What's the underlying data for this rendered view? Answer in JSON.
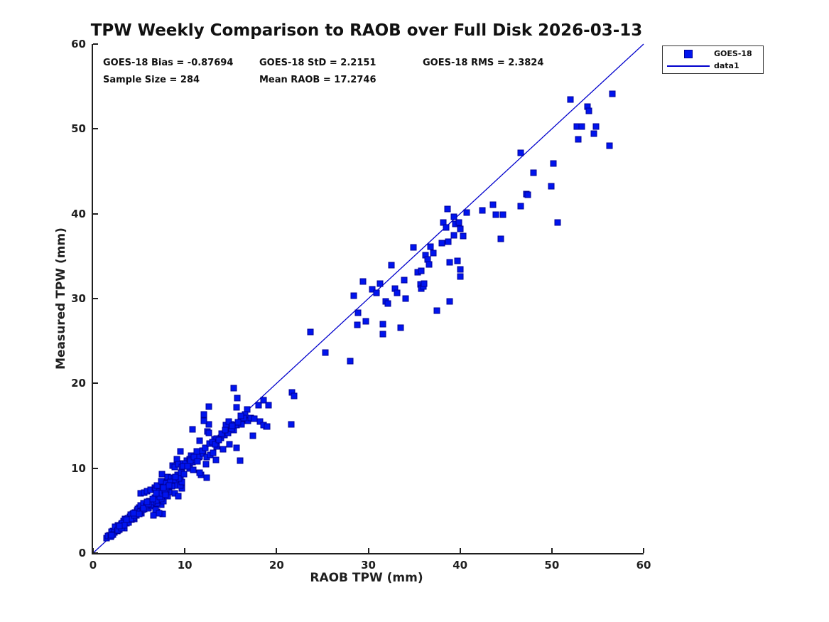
{
  "title": "TPW Weekly Comparison to RAOB over Full Disk 2026-03-13",
  "stats": {
    "bias": "GOES-18 Bias = -0.87694",
    "std": "GOES-18 StD = 2.2151",
    "rms": "GOES-18 RMS = 2.3824",
    "sample_size": "Sample Size = 284",
    "mean_raob": "Mean RAOB = 17.2746"
  },
  "legend": {
    "marker_label": "GOES-18",
    "line_label": "data1"
  },
  "colors": {
    "marker_fill": "#0014ee",
    "marker_edge": "#000099",
    "line": "#0000cc",
    "axis": "#1f1f1f"
  },
  "chart_data": {
    "type": "scatter",
    "title": "TPW Weekly Comparison to RAOB over Full Disk 2026-03-13",
    "xlabel": "RAOB TPW (mm)",
    "ylabel": "Measured TPW (mm)",
    "xlim": [
      0,
      60
    ],
    "ylim": [
      0,
      60
    ],
    "xticks": [
      0,
      10,
      20,
      30,
      40,
      50,
      60
    ],
    "yticks": [
      0,
      10,
      20,
      30,
      40,
      50,
      60
    ],
    "grid": false,
    "legend_position": "outside-top-right",
    "annotations": [
      "GOES-18 Bias = -0.87694",
      "GOES-18 StD = 2.2151",
      "GOES-18 RMS = 2.3824",
      "Sample Size = 284",
      "Mean RAOB = 17.2746"
    ],
    "series": [
      {
        "name": "GOES-18",
        "type": "scatter",
        "marker": "square",
        "points": [
          [
            1.5,
            1.8
          ],
          [
            1.8,
            2.1
          ],
          [
            2.1,
            2.3
          ],
          [
            2.2,
            2.6
          ],
          [
            2.5,
            2.9
          ],
          [
            2.7,
            3.3
          ],
          [
            2.9,
            2.8
          ],
          [
            3.1,
            3.4
          ],
          [
            3.3,
            3.8
          ],
          [
            3.4,
            2.9
          ],
          [
            3.5,
            4.0
          ],
          [
            3.7,
            3.8
          ],
          [
            4.0,
            4.3
          ],
          [
            4.3,
            4.6
          ],
          [
            4.5,
            4.0
          ],
          [
            4.8,
            5.0
          ],
          [
            5.0,
            5.4
          ],
          [
            5.3,
            4.7
          ],
          [
            5.6,
            5.2
          ],
          [
            5.7,
            5.8
          ],
          [
            6.0,
            5.3
          ],
          [
            6.2,
            5.9
          ],
          [
            6.4,
            5.5
          ],
          [
            6.6,
            6.3
          ],
          [
            6.8,
            5.9
          ],
          [
            7.0,
            4.9
          ],
          [
            7.1,
            6.3
          ],
          [
            7.4,
            5.7
          ],
          [
            7.6,
            4.6
          ],
          [
            7.7,
            6.1
          ],
          [
            6.6,
            4.4
          ],
          [
            6.8,
            5.1
          ],
          [
            7.2,
            4.7
          ],
          [
            7.0,
            5.9
          ],
          [
            7.4,
            6.4
          ],
          [
            8.1,
            6.7
          ],
          [
            8.3,
            7.2
          ],
          [
            8.9,
            7.0
          ],
          [
            9.3,
            6.7
          ],
          [
            9.7,
            7.6
          ],
          [
            5.2,
            7.0
          ],
          [
            5.6,
            7.1
          ],
          [
            5.9,
            7.3
          ],
          [
            6.3,
            7.5
          ],
          [
            6.7,
            7.7
          ],
          [
            6.8,
            7.5
          ],
          [
            7.0,
            8.0
          ],
          [
            7.2,
            7.2
          ],
          [
            7.4,
            8.5
          ],
          [
            7.5,
            9.3
          ],
          [
            7.6,
            7.5
          ],
          [
            8.0,
            7.4
          ],
          [
            8.0,
            8.2
          ],
          [
            8.1,
            9.0
          ],
          [
            8.5,
            8.9
          ],
          [
            8.5,
            8.2
          ],
          [
            8.7,
            8.2
          ],
          [
            8.7,
            10.3
          ],
          [
            8.8,
            8.8
          ],
          [
            8.9,
            10.1
          ],
          [
            9.1,
            8.0
          ],
          [
            9.1,
            11.1
          ],
          [
            9.3,
            10.5
          ],
          [
            9.5,
            8.0
          ],
          [
            9.5,
            9.0
          ],
          [
            9.5,
            12.0
          ],
          [
            9.7,
            8.4
          ],
          [
            9.7,
            9.9
          ],
          [
            9.8,
            10.6
          ],
          [
            10.2,
            10.9
          ],
          [
            10.5,
            10.0
          ],
          [
            10.7,
            11.5
          ],
          [
            10.8,
            14.6
          ],
          [
            11.5,
            11.3
          ],
          [
            11.8,
            9.2
          ],
          [
            12.4,
            8.9
          ],
          [
            11.6,
            9.5
          ],
          [
            9.7,
            10.1
          ],
          [
            10.1,
            10.6
          ],
          [
            10.5,
            11.1
          ],
          [
            10.8,
            10.7
          ],
          [
            11.2,
            11.0
          ],
          [
            11.6,
            11.4
          ],
          [
            12.0,
            11.7
          ],
          [
            12.4,
            11.3
          ],
          [
            12.8,
            11.6
          ],
          [
            13.1,
            11.8
          ],
          [
            13.5,
            12.6
          ],
          [
            14.2,
            12.2
          ],
          [
            14.9,
            12.8
          ],
          [
            15.6,
            12.4
          ],
          [
            16.0,
            10.9
          ],
          [
            11.6,
            13.2
          ],
          [
            13.2,
            13.4
          ],
          [
            13.5,
            13.5
          ],
          [
            13.9,
            13.6
          ],
          [
            14.3,
            13.9
          ],
          [
            14.7,
            14.2
          ],
          [
            15.0,
            15.2
          ],
          [
            15.3,
            14.5
          ],
          [
            14.5,
            15.1
          ],
          [
            12.5,
            14.3
          ],
          [
            12.6,
            14.2
          ],
          [
            12.6,
            15.2
          ],
          [
            12.1,
            15.6
          ],
          [
            12.1,
            16.3
          ],
          [
            12.6,
            17.3
          ],
          [
            14.8,
            15.5
          ],
          [
            15.1,
            14.7
          ],
          [
            15.6,
            15.1
          ],
          [
            16.2,
            15.2
          ],
          [
            16.9,
            15.6
          ],
          [
            17.4,
            13.8
          ],
          [
            18.9,
            14.9
          ],
          [
            17.2,
            15.9
          ],
          [
            17.6,
            15.8
          ],
          [
            18.2,
            15.5
          ],
          [
            18.6,
            15.1
          ],
          [
            19.0,
            14.9
          ],
          [
            15.3,
            19.4
          ],
          [
            15.7,
            18.3
          ],
          [
            15.6,
            17.2
          ],
          [
            16.8,
            16.9
          ],
          [
            16.6,
            16.3
          ],
          [
            18.0,
            17.4
          ],
          [
            18.6,
            18.0
          ],
          [
            19.1,
            17.4
          ],
          [
            21.6,
            15.2
          ],
          [
            21.7,
            18.9
          ],
          [
            21.9,
            18.5
          ],
          [
            23.7,
            26.1
          ],
          [
            25.3,
            23.6
          ],
          [
            28.0,
            22.6
          ],
          [
            28.4,
            30.3
          ],
          [
            28.8,
            26.9
          ],
          [
            28.9,
            28.3
          ],
          [
            29.4,
            32.0
          ],
          [
            29.7,
            27.3
          ],
          [
            30.4,
            31.1
          ],
          [
            30.9,
            30.7
          ],
          [
            31.3,
            31.8
          ],
          [
            31.6,
            27.0
          ],
          [
            31.6,
            25.8
          ],
          [
            31.9,
            29.7
          ],
          [
            32.1,
            29.4
          ],
          [
            32.9,
            31.2
          ],
          [
            33.1,
            30.7
          ],
          [
            33.5,
            26.6
          ],
          [
            33.9,
            32.2
          ],
          [
            34.1,
            30.0
          ],
          [
            35.4,
            33.1
          ],
          [
            35.7,
            31.7
          ],
          [
            35.8,
            31.2
          ],
          [
            36.0,
            31.4
          ],
          [
            36.1,
            31.8
          ],
          [
            37.5,
            28.6
          ],
          [
            38.9,
            29.7
          ],
          [
            32.5,
            33.9
          ],
          [
            34.9,
            36.0
          ],
          [
            35.8,
            33.3
          ],
          [
            36.2,
            35.1
          ],
          [
            36.5,
            34.6
          ],
          [
            36.6,
            34.0
          ],
          [
            36.8,
            36.1
          ],
          [
            37.1,
            35.4
          ],
          [
            38.0,
            36.5
          ],
          [
            38.2,
            39.0
          ],
          [
            38.5,
            38.4
          ],
          [
            38.6,
            40.6
          ],
          [
            38.7,
            36.7
          ],
          [
            39.3,
            37.5
          ],
          [
            39.3,
            39.6
          ],
          [
            39.5,
            38.8
          ],
          [
            39.9,
            39.0
          ],
          [
            40.0,
            38.2
          ],
          [
            40.3,
            37.4
          ],
          [
            38.9,
            34.3
          ],
          [
            39.7,
            34.4
          ],
          [
            40.0,
            33.4
          ],
          [
            40.0,
            32.6
          ],
          [
            40.7,
            40.1
          ],
          [
            42.4,
            40.4
          ],
          [
            43.6,
            41.1
          ],
          [
            43.9,
            39.9
          ],
          [
            44.4,
            37.0
          ],
          [
            44.7,
            39.9
          ],
          [
            46.6,
            40.9
          ],
          [
            46.6,
            47.2
          ],
          [
            47.2,
            42.3
          ],
          [
            47.4,
            42.2
          ],
          [
            48.0,
            44.8
          ],
          [
            49.9,
            43.2
          ],
          [
            50.2,
            45.9
          ],
          [
            50.6,
            39.0
          ],
          [
            52.0,
            53.5
          ],
          [
            52.7,
            50.3
          ],
          [
            52.9,
            48.8
          ],
          [
            53.3,
            50.3
          ],
          [
            53.9,
            52.6
          ],
          [
            54.0,
            52.1
          ],
          [
            54.6,
            49.4
          ],
          [
            54.8,
            50.3
          ],
          [
            56.3,
            48.0
          ],
          [
            56.6,
            54.1
          ],
          [
            1.6,
            2.0
          ],
          [
            1.9,
            1.9
          ],
          [
            2.0,
            2.5
          ],
          [
            2.3,
            2.4
          ],
          [
            2.4,
            3.1
          ],
          [
            2.6,
            2.6
          ],
          [
            2.8,
            3.0
          ],
          [
            3.0,
            3.1
          ],
          [
            3.2,
            3.5
          ],
          [
            3.6,
            3.5
          ],
          [
            3.8,
            4.1
          ],
          [
            3.9,
            3.6
          ],
          [
            4.1,
            4.5
          ],
          [
            4.2,
            3.9
          ],
          [
            4.4,
            4.2
          ],
          [
            4.6,
            4.8
          ],
          [
            4.7,
            4.4
          ],
          [
            4.9,
            5.2
          ],
          [
            5.1,
            4.9
          ],
          [
            5.2,
            5.6
          ],
          [
            5.4,
            5.1
          ],
          [
            5.5,
            5.9
          ],
          [
            5.8,
            5.5
          ],
          [
            6.1,
            6.1
          ],
          [
            6.3,
            5.7
          ],
          [
            6.5,
            6.0
          ],
          [
            6.7,
            6.5
          ],
          [
            6.9,
            6.2
          ],
          [
            7.3,
            6.6
          ],
          [
            7.5,
            7.0
          ],
          [
            7.8,
            7.3
          ],
          [
            7.9,
            6.9
          ],
          [
            8.2,
            7.8
          ],
          [
            8.4,
            8.4
          ],
          [
            8.6,
            7.9
          ],
          [
            9.0,
            8.6
          ],
          [
            9.2,
            9.2
          ],
          [
            9.4,
            8.8
          ],
          [
            9.6,
            9.5
          ],
          [
            9.9,
            9.3
          ],
          [
            2.2,
            2.2
          ],
          [
            2.7,
            2.7
          ],
          [
            3.1,
            2.9
          ],
          [
            3.4,
            3.3
          ],
          [
            4.1,
            4.0
          ],
          [
            4.5,
            4.4
          ],
          [
            5.0,
            4.6
          ],
          [
            5.5,
            5.3
          ],
          [
            6.0,
            5.8
          ],
          [
            6.5,
            6.4
          ],
          [
            2.0,
            2.1
          ],
          [
            2.9,
            3.2
          ],
          [
            3.6,
            3.9
          ],
          [
            4.4,
            4.7
          ],
          [
            5.9,
            6.0
          ],
          [
            6.9,
            7.0
          ],
          [
            7.7,
            7.7
          ],
          [
            8.3,
            8.0
          ],
          [
            9.0,
            9.0
          ],
          [
            9.8,
            10.2
          ],
          [
            10.3,
            10.2
          ],
          [
            10.6,
            10.9
          ],
          [
            11.0,
            11.3
          ],
          [
            11.4,
            10.8
          ],
          [
            11.9,
            12.1
          ],
          [
            12.2,
            12.4
          ],
          [
            12.7,
            12.9
          ],
          [
            13.0,
            13.1
          ],
          [
            13.3,
            12.8
          ],
          [
            13.7,
            13.3
          ],
          [
            14.0,
            14.1
          ],
          [
            14.4,
            14.5
          ],
          [
            15.2,
            15.0
          ],
          [
            15.8,
            15.4
          ],
          [
            16.4,
            15.9
          ],
          [
            13.4,
            11.0
          ],
          [
            16.1,
            16.2
          ],
          [
            12.3,
            10.5
          ],
          [
            10.9,
            9.8
          ],
          [
            11.3,
            12.0
          ]
        ]
      },
      {
        "name": "data1",
        "type": "line",
        "points": [
          [
            0,
            0
          ],
          [
            60,
            60
          ]
        ]
      }
    ]
  }
}
